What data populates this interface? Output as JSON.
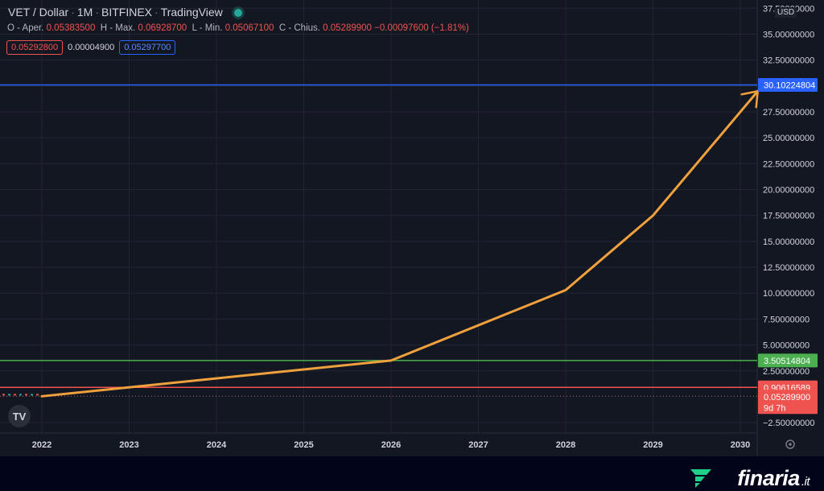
{
  "header": {
    "symbol": "VET / Dollar",
    "interval": "1M",
    "exchange": "BITFINEX",
    "source": "TradingView"
  },
  "ohlc": {
    "open_label": "O - Aper.",
    "open_value": "0.05383500",
    "high_label": "H - Max.",
    "high_value": "0.06928700",
    "low_label": "L - Min.",
    "low_value": "0.05067100",
    "close_label": "C - Chius.",
    "close_value": "0.05289900",
    "change": "−0.00097600 (−1.81%)"
  },
  "quote": {
    "sell": "0.05292800",
    "spread": "0.00004900",
    "buy": "0.05297700"
  },
  "currency": "USD",
  "brand": {
    "name": "finaria",
    "tld": ".it"
  },
  "colors": {
    "background": "#131722",
    "grid": "#232632",
    "axis_text": "#d1d4dc",
    "forecast": "#f0a03c",
    "blue_line": "#2962ff",
    "green_line": "#4caf50",
    "red_line": "#ef5350",
    "red_dotted": "#b06a6a"
  },
  "chart_data": {
    "type": "line",
    "x_ticks": [
      "2022",
      "2023",
      "2024",
      "2025",
      "2026",
      "2027",
      "2028",
      "2029",
      "2030"
    ],
    "y_ticks": [
      "37.50000000",
      "35.00000000",
      "32.50000000",
      "30.00000000",
      "27.50000000",
      "25.00000000",
      "22.50000000",
      "20.00000000",
      "17.50000000",
      "15.00000000",
      "12.50000000",
      "10.00000000",
      "7.50000000",
      "5.00000000",
      "2.50000000",
      "−2.50000000"
    ],
    "ylim": [
      -3.5,
      38.3
    ],
    "series": [
      {
        "x": [
          2022.0,
          2026.0,
          2028.0,
          2029.0,
          2030.2
        ],
        "y": [
          0.05,
          3.5,
          10.3,
          17.5,
          29.5
        ]
      }
    ],
    "horizontal_lines": [
      {
        "label": "30.10224804",
        "value": 30.10224804,
        "color": "blue"
      },
      {
        "label": "3.50514804",
        "value": 3.50514804,
        "color": "green"
      },
      {
        "label": "0.90616589",
        "value": 0.90616589,
        "color": "red"
      },
      {
        "label": "0.05289900",
        "value": 0.052899,
        "color": "red_dotted",
        "countdown": "9d 7h"
      }
    ]
  }
}
